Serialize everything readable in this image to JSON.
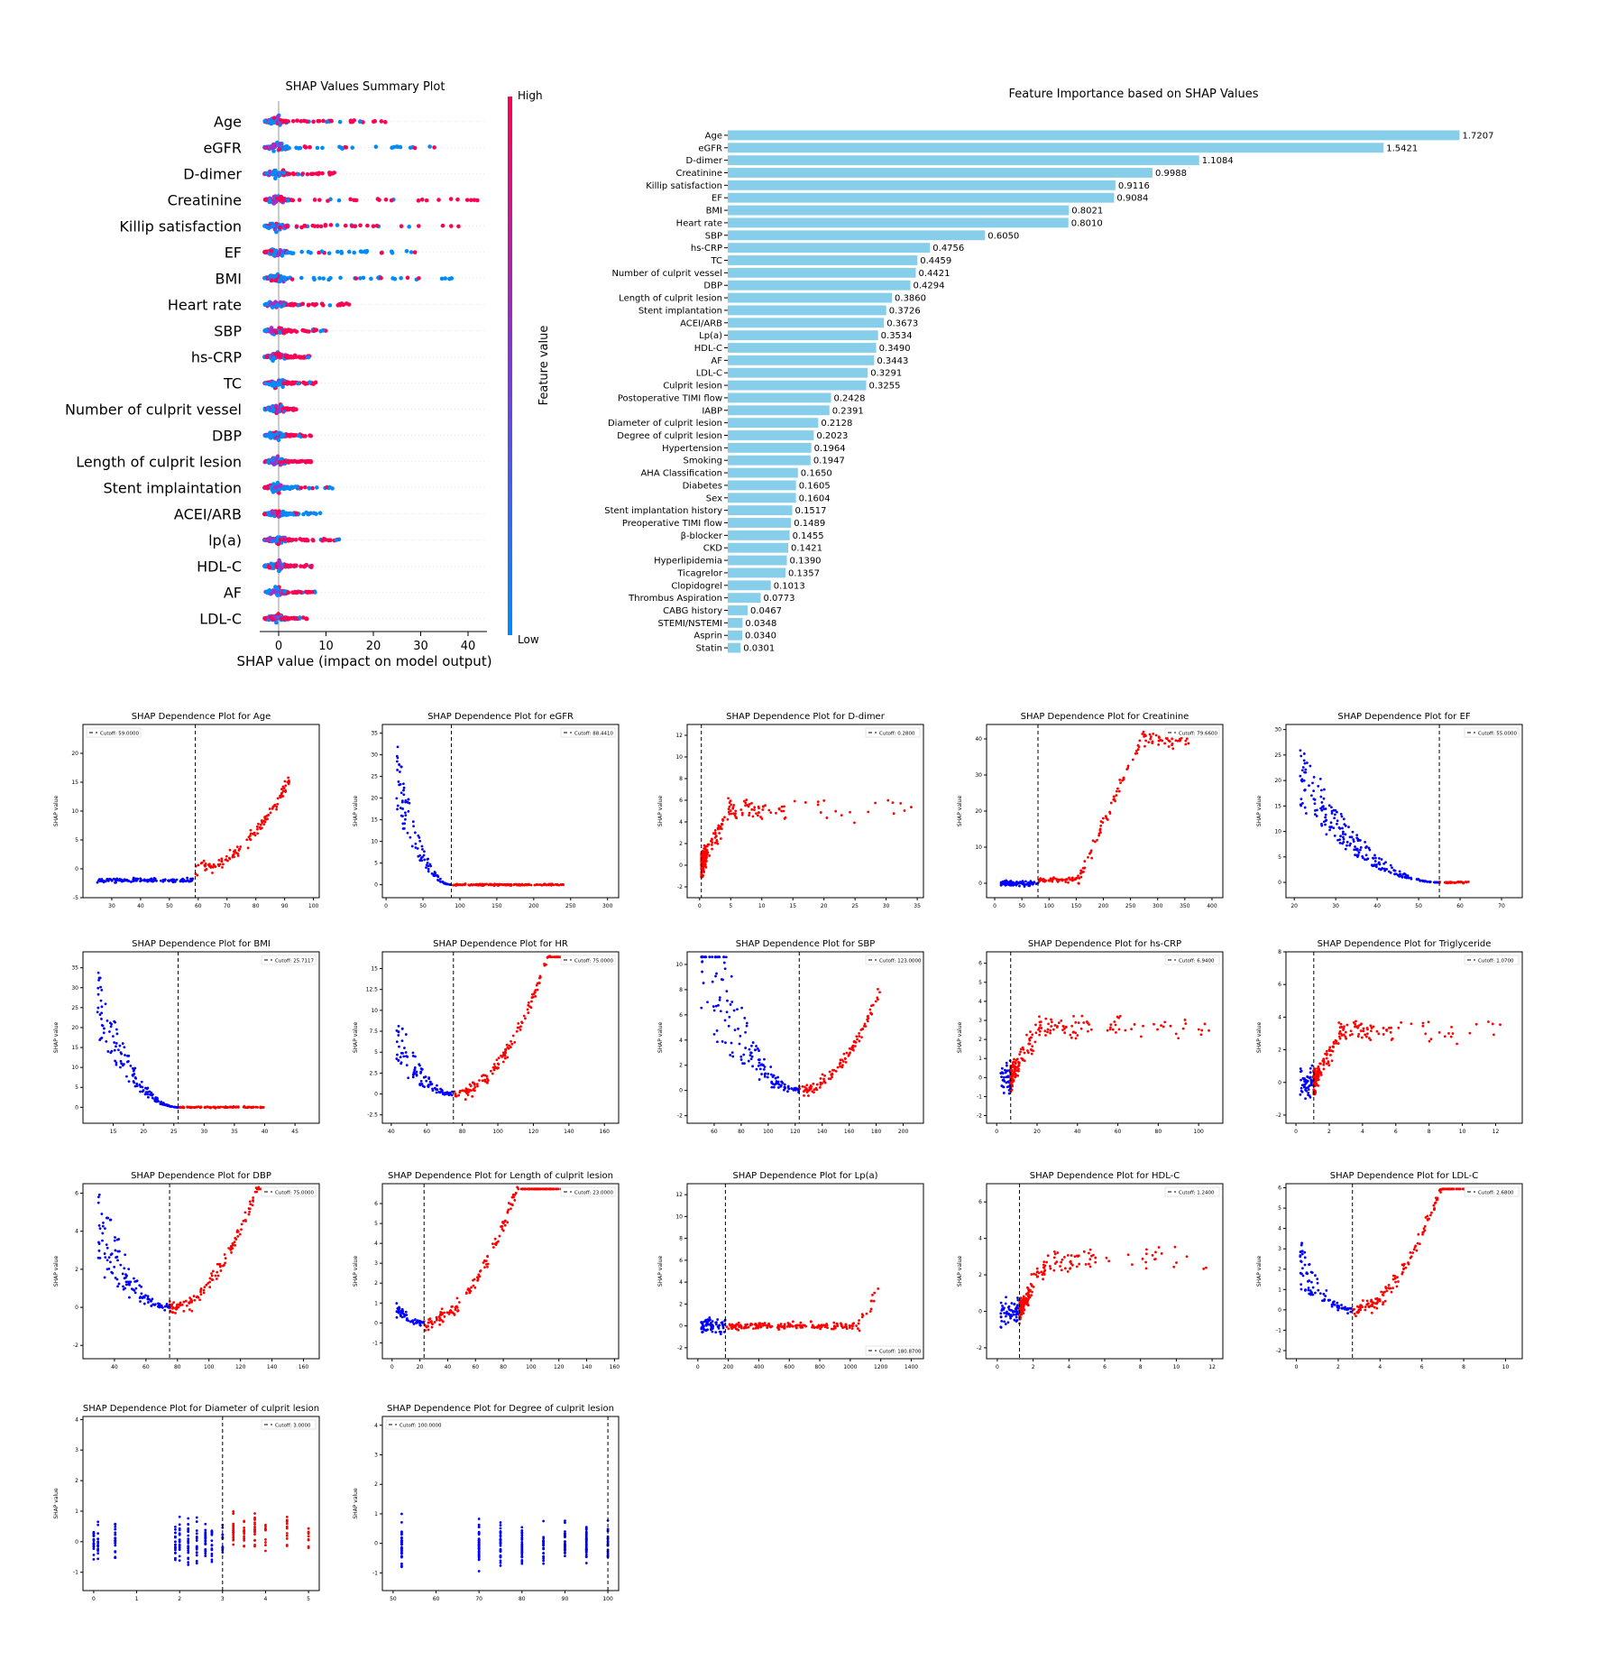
{
  "summary": {
    "title": "SHAP Values Summary Plot",
    "xlabel": "SHAP value (impact on model output)",
    "colorbar_label": "Feature value",
    "colorbar_high": "High",
    "colorbar_low": "Low",
    "features": [
      "Age",
      "eGFR",
      "D-dimer",
      "Creatinine",
      "Killip satisfaction",
      "EF",
      "BMI",
      "Heart rate",
      "SBP",
      "hs-CRP",
      "TC",
      "Number of culprit vessel",
      "DBP",
      "Length of culprit lesion",
      "Stent implaintation",
      "ACEI/ARB",
      "lp(a)",
      "HDL-C",
      "AF",
      "LDL-C"
    ],
    "xticks": [
      "0",
      "10",
      "20",
      "30",
      "40"
    ]
  },
  "chart_data": [
    {
      "type": "scatter",
      "title": "SHAP Values Summary Plot",
      "xlabel": "SHAP value (impact on model output)",
      "xlim": [
        -4,
        44
      ],
      "categories": [
        "Age",
        "eGFR",
        "D-dimer",
        "Creatinine",
        "Killip satisfaction",
        "EF",
        "BMI",
        "Heart rate",
        "SBP",
        "hs-CRP",
        "TC",
        "Number of culprit vessel",
        "DBP",
        "Length of culprit lesion",
        "Stent implaintation",
        "ACEI/ARB",
        "lp(a)",
        "HDL-C",
        "AF",
        "LDL-C"
      ],
      "max_shap": [
        24,
        36,
        12,
        42,
        38,
        30,
        37,
        16,
        11,
        7,
        8,
        4,
        7,
        7,
        12,
        9,
        13,
        7,
        8,
        6
      ],
      "high_color": "#ff0052",
      "low_color": "#008bfb"
    },
    {
      "type": "bar",
      "orientation": "horizontal",
      "title": "Feature Importance based on SHAP Values",
      "bar_color": "#87CEEB",
      "categories": [
        "Age",
        "eGFR",
        "D-dimer",
        "Creatinine",
        "Killip satisfaction",
        "EF",
        "BMI",
        "Heart rate",
        "SBP",
        "hs-CRP",
        "TC",
        "Number of culprit vessel",
        "DBP",
        "Length of culprit lesion",
        "Stent implantation",
        "ACEI/ARB",
        "Lp(a)",
        "HDL-C",
        "AF",
        "LDL-C",
        "Culprit lesion",
        "Postoperative TIMI flow",
        "IABP",
        "Diameter of culprit lesion",
        "Degree of culprit lesion",
        "Hypertension",
        "Smoking",
        "AHA Classification",
        "Diabetes",
        "Sex",
        "Stent implantation history",
        "Preoperative TIMI flow",
        "β-blocker",
        "CKD",
        "Hyperlipidemia",
        "Ticagrelor",
        "Clopidogrel",
        "Thrombus Aspiration",
        "CABG history",
        "STEMI/NSTEMI",
        "Asprin",
        "Statin"
      ],
      "values": [
        1.7207,
        1.5421,
        1.1084,
        0.9988,
        0.9116,
        0.9084,
        0.8021,
        0.801,
        0.605,
        0.4756,
        0.4459,
        0.4421,
        0.4294,
        0.386,
        0.3726,
        0.3673,
        0.3534,
        0.349,
        0.3443,
        0.3291,
        0.3255,
        0.2428,
        0.2391,
        0.2128,
        0.2023,
        0.1964,
        0.1947,
        0.165,
        0.1605,
        0.1604,
        0.1517,
        0.1489,
        0.1455,
        0.1421,
        0.139,
        0.1357,
        0.1013,
        0.0773,
        0.0467,
        0.0348,
        0.034,
        0.0301
      ],
      "labels": [
        "1.7207",
        "1.5421",
        "1.1084",
        "0.9988",
        "0.9116",
        "0.9084",
        "0.8021",
        "0.8010",
        "0.6050",
        "0.4756",
        "0.4459",
        "0.4421",
        "0.4294",
        "0.3860",
        "0.3726",
        "0.3673",
        "0.3534",
        "0.3490",
        "0.3443",
        "0.3291",
        "0.3255",
        "0.2428",
        "0.2391",
        "0.2128",
        "0.2023",
        "0.1964",
        "0.1947",
        "0.1650",
        "0.1605",
        "0.1604",
        "0.1517",
        "0.1489",
        "0.1455",
        "0.1421",
        "0.1390",
        "0.1357",
        "0.1013",
        "0.0773",
        "0.0467",
        "0.0348",
        "0.0340",
        "0.0301"
      ]
    },
    {
      "type": "scatter",
      "title": "SHAP Dependence Plot for Age",
      "ylabel": "SHAP value",
      "cutoff": 59,
      "cutoff_label": "Cutoff: 59.0000",
      "legend": "top-left",
      "xlim": [
        20,
        102
      ],
      "ylim": [
        -5,
        25
      ],
      "xticks": [
        30,
        40,
        50,
        60,
        70,
        80,
        90,
        100
      ],
      "yticks": [
        -5,
        0,
        5,
        10,
        15,
        20
      ],
      "shape": "age"
    },
    {
      "type": "scatter",
      "title": "SHAP Dependence Plot for eGFR",
      "ylabel": "SHAP value",
      "cutoff": 88.441,
      "cutoff_label": "Cutoff: 88.4410",
      "legend": "top-right",
      "xlim": [
        -5,
        315
      ],
      "ylim": [
        -3,
        37
      ],
      "xticks": [
        0,
        50,
        100,
        150,
        200,
        250,
        300
      ],
      "yticks": [
        0,
        5,
        10,
        15,
        20,
        25,
        30,
        35
      ],
      "shape": "decay"
    },
    {
      "type": "scatter",
      "title": "SHAP Dependence Plot for D-dimer",
      "ylabel": "SHAP value",
      "cutoff": 0.28,
      "cutoff_label": "Cutoff: 0.2800",
      "legend": "top-right",
      "xlim": [
        -2,
        36
      ],
      "ylim": [
        -3,
        13
      ],
      "xticks": [
        0,
        5,
        10,
        15,
        20,
        25,
        30,
        35
      ],
      "yticks": [
        -2,
        0,
        2,
        4,
        6,
        8,
        10,
        12
      ],
      "shape": "spike"
    },
    {
      "type": "scatter",
      "title": "SHAP Dependence Plot for Creatinine",
      "ylabel": "SHAP value",
      "cutoff": 79.66,
      "cutoff_label": "Cutoff: 79.6600",
      "legend": "top-right",
      "xlim": [
        -15,
        420
      ],
      "ylim": [
        -4,
        44
      ],
      "xticks": [
        0,
        50,
        100,
        150,
        200,
        250,
        300,
        350,
        400
      ],
      "yticks": [
        0,
        10,
        20,
        30,
        40
      ],
      "shape": "creat"
    },
    {
      "type": "scatter",
      "title": "SHAP Dependence Plot for EF",
      "ylabel": "SHAP value",
      "cutoff": 55,
      "cutoff_label": "Cutoff: 55.0000",
      "legend": "top-right",
      "xlim": [
        18,
        75
      ],
      "ylim": [
        -3,
        31
      ],
      "xticks": [
        20,
        30,
        40,
        50,
        60,
        70
      ],
      "yticks": [
        0,
        5,
        10,
        15,
        20,
        25,
        30
      ],
      "shape": "decay"
    },
    {
      "type": "scatter",
      "title": "SHAP Dependence Plot for BMI",
      "ylabel": "SHAP value",
      "cutoff": 25.7117,
      "cutoff_label": "Cutoff: 25.7117",
      "legend": "top-right",
      "xlim": [
        10,
        49
      ],
      "ylim": [
        -4,
        39
      ],
      "xticks": [
        15,
        20,
        25,
        30,
        35,
        40,
        45
      ],
      "yticks": [
        0,
        5,
        10,
        15,
        20,
        25,
        30,
        35
      ],
      "shape": "decay"
    },
    {
      "type": "scatter",
      "title": "SHAP Dependence Plot for HR",
      "ylabel": "SHAP value",
      "cutoff": 75,
      "cutoff_label": "Cutoff: 75.0000",
      "legend": "top-right",
      "xlim": [
        35,
        168
      ],
      "ylim": [
        -3.5,
        17
      ],
      "xticks": [
        40,
        60,
        80,
        100,
        120,
        140,
        160
      ],
      "yticks": [
        -2.5,
        0.0,
        2.5,
        5.0,
        7.5,
        10.0,
        12.5,
        15.0
      ],
      "shape": "ushape"
    },
    {
      "type": "scatter",
      "title": "SHAP Dependence Plot for SBP",
      "ylabel": "SHAP value",
      "cutoff": 123,
      "cutoff_label": "Cutoff: 123.0000",
      "legend": "top-right",
      "xlim": [
        40,
        215
      ],
      "ylim": [
        -2.6,
        11
      ],
      "xticks": [
        60,
        80,
        100,
        120,
        140,
        160,
        180,
        200
      ],
      "yticks": [
        -2,
        0,
        2,
        4,
        6,
        8,
        10
      ],
      "shape": "ushape"
    },
    {
      "type": "scatter",
      "title": "SHAP Dependence Plot for hs-CRP",
      "ylabel": "SHAP value",
      "cutoff": 6.94,
      "cutoff_label": "Cutoff: 6.9400",
      "legend": "top-right",
      "xlim": [
        -5,
        112
      ],
      "ylim": [
        -2.4,
        6.6
      ],
      "xticks": [
        0,
        20,
        40,
        60,
        80,
        100
      ],
      "yticks": [
        -2,
        -1,
        0,
        1,
        2,
        3,
        4,
        5,
        6
      ],
      "shape": "spike"
    },
    {
      "type": "scatter",
      "title": "SHAP Dependence Plot for Triglyceride",
      "ylabel": "SHAP value",
      "cutoff": 1.07,
      "cutoff_label": "Cutoff: 1.0700",
      "legend": "top-right",
      "xlim": [
        -0.6,
        13.6
      ],
      "ylim": [
        -2.5,
        8
      ],
      "xticks": [
        0,
        2,
        4,
        6,
        8,
        10,
        12
      ],
      "yticks": [
        -2,
        0,
        2,
        4,
        6,
        8
      ],
      "shape": "spike"
    },
    {
      "type": "scatter",
      "title": "SHAP Dependence Plot for DBP",
      "ylabel": "SHAP value",
      "cutoff": 75,
      "cutoff_label": "Cutoff: 75.0000",
      "legend": "top-right",
      "xlim": [
        20,
        170
      ],
      "ylim": [
        -2.7,
        6.5
      ],
      "xticks": [
        40,
        60,
        80,
        100,
        120,
        140,
        160
      ],
      "yticks": [
        -2,
        0,
        2,
        4,
        6
      ],
      "shape": "ushape"
    },
    {
      "type": "scatter",
      "title": "SHAP Dependence Plot for Length of culprit lesion",
      "ylabel": "SHAP value",
      "cutoff": 23,
      "cutoff_label": "Cutoff: 23.0000",
      "legend": "top-right",
      "xlim": [
        -7,
        163
      ],
      "ylim": [
        -1.8,
        7
      ],
      "xticks": [
        0,
        20,
        40,
        60,
        80,
        100,
        120,
        140,
        160
      ],
      "yticks": [
        -1,
        0,
        1,
        2,
        3,
        4,
        5,
        6
      ],
      "shape": "ushape"
    },
    {
      "type": "scatter",
      "title": "SHAP Dependence Plot for Lp(a)",
      "ylabel": "SHAP value",
      "cutoff": 180.87,
      "cutoff_label": "Cutoff: 180.8700",
      "legend": "bottom-right",
      "xlim": [
        -70,
        1480
      ],
      "ylim": [
        -3,
        13
      ],
      "xticks": [
        0,
        200,
        400,
        600,
        800,
        1000,
        1200,
        1400
      ],
      "yticks": [
        -2,
        0,
        2,
        4,
        6,
        8,
        10,
        12
      ],
      "shape": "lpa"
    },
    {
      "type": "scatter",
      "title": "SHAP Dependence Plot for HDL-C",
      "ylabel": "SHAP value",
      "cutoff": 1.24,
      "cutoff_label": "Cutoff: 1.2400",
      "legend": "top-right",
      "xlim": [
        -0.6,
        12.6
      ],
      "ylim": [
        -2.6,
        7
      ],
      "xticks": [
        0,
        2,
        4,
        6,
        8,
        10,
        12
      ],
      "yticks": [
        -2,
        0,
        2,
        4,
        6
      ],
      "shape": "spike"
    },
    {
      "type": "scatter",
      "title": "SHAP Dependence Plot for LDL-C",
      "ylabel": "SHAP value",
      "cutoff": 2.68,
      "cutoff_label": "Cutoff: 2.6800",
      "legend": "top-right",
      "xlim": [
        -0.5,
        10.8
      ],
      "ylim": [
        -2.4,
        6.2
      ],
      "xticks": [
        0,
        2,
        4,
        6,
        8,
        10
      ],
      "yticks": [
        -2,
        -1,
        0,
        1,
        2,
        3,
        4,
        5,
        6
      ],
      "shape": "ushape"
    },
    {
      "type": "scatter",
      "title": "SHAP Dependence Plot for Diameter of culprit lesion",
      "ylabel": "SHAP value",
      "cutoff": 3,
      "cutoff_label": "Cutoff: 3.0000",
      "legend": "top-right",
      "xlim": [
        -0.25,
        5.25
      ],
      "ylim": [
        -1.6,
        4.1
      ],
      "xticks": [
        0,
        1,
        2,
        3,
        4,
        5
      ],
      "yticks": [
        -1,
        0,
        1,
        2,
        3,
        4
      ],
      "shape": "discrete"
    },
    {
      "type": "scatter",
      "title": "SHAP Dependence Plot for Degree of culprit lesion",
      "ylabel": "SHAP value",
      "cutoff": 100,
      "cutoff_label": "Cutoff: 100.0000",
      "legend": "top-left",
      "xlim": [
        47.5,
        102.5
      ],
      "ylim": [
        -1.6,
        4.3
      ],
      "xticks": [
        50,
        60,
        70,
        80,
        90,
        100
      ],
      "yticks": [
        -1,
        0,
        1,
        2,
        3,
        4
      ],
      "shape": "discrete"
    }
  ]
}
